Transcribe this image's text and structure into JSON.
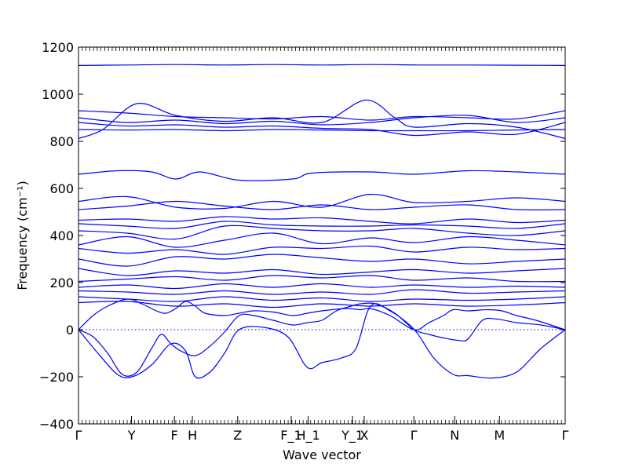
{
  "chart_data": {
    "type": "line",
    "title": "",
    "xlabel": "Wave vector",
    "ylabel": "Frequency (cm⁻¹)",
    "ylim": [
      -400,
      1200
    ],
    "yticks": [
      -400,
      -200,
      0,
      200,
      400,
      600,
      800,
      1000,
      1200
    ],
    "xlim": [
      0,
      1
    ],
    "grid": false,
    "high_symmetry_points": [
      {
        "label": "Γ",
        "x": 0.0
      },
      {
        "label": "Y",
        "x": 0.109
      },
      {
        "label": "F",
        "x": 0.197
      },
      {
        "label": "H",
        "x": 0.234
      },
      {
        "label": "Z",
        "x": 0.327
      },
      {
        "label": "F_1",
        "x": 0.437
      },
      {
        "label": "H_1",
        "x": 0.472
      },
      {
        "label": "Y_1",
        "x": 0.563
      },
      {
        "label": "X",
        "x": 0.587
      },
      {
        "label": "Γ",
        "x": 0.689
      },
      {
        "label": "N",
        "x": 0.773
      },
      {
        "label": "M",
        "x": 0.865
      },
      {
        "label": "Γ",
        "x": 1.0
      }
    ],
    "series": [
      {
        "x": [
          0,
          0.1,
          0.2,
          0.3,
          0.4,
          0.5,
          0.6,
          0.7,
          0.8,
          0.9,
          1
        ],
        "y": [
          1122,
          1124,
          1126,
          1124,
          1126,
          1124,
          1126,
          1124,
          1124,
          1123,
          1122
        ]
      },
      {
        "x": [
          0,
          0.05,
          0.12,
          0.2,
          0.3,
          0.4,
          0.5,
          0.59,
          0.65,
          0.69,
          0.8,
          0.9,
          1
        ],
        "y": [
          812,
          850,
          960,
          910,
          885,
          900,
          880,
          975,
          900,
          860,
          875,
          860,
          812
        ]
      },
      {
        "x": [
          0,
          0.1,
          0.2,
          0.3,
          0.4,
          0.5,
          0.6,
          0.69,
          0.8,
          0.9,
          1
        ],
        "y": [
          930,
          920,
          905,
          900,
          895,
          905,
          890,
          905,
          900,
          895,
          930
        ]
      },
      {
        "x": [
          0,
          0.1,
          0.2,
          0.3,
          0.4,
          0.5,
          0.6,
          0.69,
          0.8,
          0.9,
          1
        ],
        "y": [
          900,
          880,
          890,
          875,
          885,
          870,
          880,
          900,
          910,
          880,
          900
        ]
      },
      {
        "x": [
          0,
          0.1,
          0.2,
          0.3,
          0.4,
          0.5,
          0.6,
          0.69,
          0.8,
          0.9,
          1
        ],
        "y": [
          880,
          865,
          870,
          860,
          865,
          855,
          850,
          825,
          840,
          830,
          880
        ]
      },
      {
        "x": [
          0,
          0.1,
          0.2,
          0.3,
          0.4,
          0.5,
          0.6,
          0.69,
          0.8,
          0.9,
          1
        ],
        "y": [
          850,
          848,
          850,
          845,
          850,
          848,
          845,
          845,
          845,
          848,
          850
        ]
      },
      {
        "x": [
          0,
          0.08,
          0.15,
          0.2,
          0.25,
          0.33,
          0.44,
          0.48,
          0.6,
          0.69,
          0.8,
          0.9,
          1
        ],
        "y": [
          660,
          675,
          670,
          640,
          670,
          635,
          640,
          665,
          670,
          660,
          675,
          670,
          660
        ]
      },
      {
        "x": [
          0,
          0.1,
          0.2,
          0.3,
          0.4,
          0.5,
          0.6,
          0.69,
          0.8,
          0.9,
          1
        ],
        "y": [
          545,
          565,
          520,
          515,
          545,
          520,
          575,
          540,
          545,
          560,
          545
        ]
      },
      {
        "x": [
          0,
          0.1,
          0.2,
          0.3,
          0.4,
          0.5,
          0.6,
          0.69,
          0.8,
          0.9,
          1
        ],
        "y": [
          510,
          525,
          545,
          525,
          510,
          530,
          510,
          520,
          530,
          510,
          510
        ]
      },
      {
        "x": [
          0,
          0.1,
          0.2,
          0.3,
          0.4,
          0.5,
          0.6,
          0.69,
          0.8,
          0.9,
          1
        ],
        "y": [
          465,
          470,
          460,
          480,
          470,
          475,
          460,
          450,
          470,
          455,
          465
        ]
      },
      {
        "x": [
          0,
          0.1,
          0.2,
          0.3,
          0.4,
          0.5,
          0.6,
          0.69,
          0.8,
          0.9,
          1
        ],
        "y": [
          450,
          440,
          430,
          460,
          445,
          440,
          440,
          445,
          440,
          430,
          450
        ]
      },
      {
        "x": [
          0,
          0.1,
          0.2,
          0.3,
          0.4,
          0.5,
          0.6,
          0.69,
          0.8,
          0.9,
          1
        ],
        "y": [
          420,
          410,
          385,
          440,
          430,
          420,
          420,
          430,
          410,
          400,
          420
        ]
      },
      {
        "x": [
          0,
          0.1,
          0.2,
          0.3,
          0.4,
          0.5,
          0.6,
          0.69,
          0.8,
          0.9,
          1
        ],
        "y": [
          360,
          395,
          350,
          380,
          410,
          365,
          390,
          370,
          395,
          380,
          360
        ]
      },
      {
        "x": [
          0,
          0.1,
          0.2,
          0.3,
          0.4,
          0.5,
          0.6,
          0.69,
          0.8,
          0.9,
          1
        ],
        "y": [
          345,
          325,
          340,
          320,
          350,
          345,
          355,
          330,
          350,
          340,
          345
        ]
      },
      {
        "x": [
          0,
          0.1,
          0.2,
          0.3,
          0.4,
          0.5,
          0.6,
          0.69,
          0.8,
          0.9,
          1
        ],
        "y": [
          300,
          270,
          310,
          300,
          320,
          305,
          290,
          300,
          280,
          290,
          300
        ]
      },
      {
        "x": [
          0,
          0.1,
          0.2,
          0.3,
          0.4,
          0.5,
          0.6,
          0.69,
          0.8,
          0.9,
          1
        ],
        "y": [
          260,
          230,
          250,
          240,
          255,
          235,
          245,
          255,
          240,
          250,
          260
        ]
      },
      {
        "x": [
          0,
          0.1,
          0.2,
          0.3,
          0.4,
          0.5,
          0.6,
          0.69,
          0.8,
          0.9,
          1
        ],
        "y": [
          205,
          215,
          225,
          210,
          230,
          220,
          230,
          210,
          220,
          205,
          205
        ]
      },
      {
        "x": [
          0,
          0.1,
          0.2,
          0.3,
          0.4,
          0.5,
          0.6,
          0.69,
          0.8,
          0.9,
          1
        ],
        "y": [
          180,
          190,
          175,
          195,
          180,
          195,
          180,
          190,
          180,
          185,
          180
        ]
      },
      {
        "x": [
          0,
          0.1,
          0.2,
          0.3,
          0.4,
          0.5,
          0.6,
          0.69,
          0.8,
          0.9,
          1
        ],
        "y": [
          165,
          160,
          150,
          165,
          150,
          160,
          150,
          170,
          155,
          160,
          165
        ]
      },
      {
        "x": [
          0,
          0.1,
          0.2,
          0.3,
          0.4,
          0.5,
          0.6,
          0.69,
          0.8,
          0.9,
          1
        ],
        "y": [
          140,
          130,
          120,
          140,
          125,
          135,
          120,
          130,
          125,
          130,
          140
        ]
      },
      {
        "x": [
          0,
          0.1,
          0.2,
          0.3,
          0.4,
          0.5,
          0.6,
          0.69,
          0.8,
          0.9,
          1
        ],
        "y": [
          115,
          120,
          100,
          110,
          95,
          110,
          100,
          110,
          100,
          105,
          115
        ]
      },
      {
        "x": [
          0,
          0.03,
          0.06,
          0.1,
          0.13,
          0.16,
          0.18,
          0.2,
          0.22,
          0.24,
          0.26,
          0.3,
          0.33,
          0.36,
          0.4,
          0.44,
          0.47,
          0.5,
          0.55,
          0.58,
          0.6,
          0.64,
          0.69,
          0.72,
          0.75,
          0.77,
          0.8,
          0.84,
          0.87,
          0.9,
          0.94,
          1
        ],
        "y": [
          0,
          60,
          100,
          130,
          110,
          80,
          70,
          90,
          120,
          100,
          70,
          60,
          70,
          80,
          75,
          60,
          70,
          80,
          90,
          85,
          90,
          60,
          0,
          30,
          60,
          85,
          80,
          85,
          80,
          60,
          40,
          0
        ]
      },
      {
        "x": [
          0,
          0.03,
          0.06,
          0.09,
          0.12,
          0.15,
          0.17,
          0.19,
          0.21,
          0.24,
          0.27,
          0.3,
          0.33,
          0.36,
          0.4,
          0.44,
          0.47,
          0.5,
          0.53,
          0.56,
          0.58,
          0.61,
          0.65,
          0.69,
          0.72,
          0.75,
          0.78,
          0.8,
          0.83,
          0.86,
          0.9,
          0.95,
          1
        ],
        "y": [
          0,
          -30,
          -100,
          -190,
          -180,
          -80,
          -20,
          -60,
          -90,
          -110,
          -70,
          -10,
          60,
          60,
          40,
          20,
          30,
          40,
          80,
          100,
          110,
          110,
          70,
          0,
          -20,
          -35,
          -45,
          -40,
          40,
          45,
          30,
          20,
          0
        ]
      },
      {
        "x": [
          0,
          0.04,
          0.08,
          0.11,
          0.15,
          0.19,
          0.22,
          0.24,
          0.27,
          0.3,
          0.33,
          0.38,
          0.43,
          0.47,
          0.5,
          0.54,
          0.57,
          0.6,
          0.64,
          0.69,
          0.73,
          0.77,
          0.8,
          0.85,
          0.9,
          0.95,
          1
        ],
        "y": [
          0,
          -100,
          -190,
          -200,
          -150,
          -60,
          -90,
          -200,
          -180,
          -100,
          0,
          10,
          -30,
          -160,
          -140,
          -120,
          -80,
          100,
          80,
          0,
          -120,
          -190,
          -195,
          -205,
          -180,
          -80,
          0
        ]
      }
    ]
  }
}
